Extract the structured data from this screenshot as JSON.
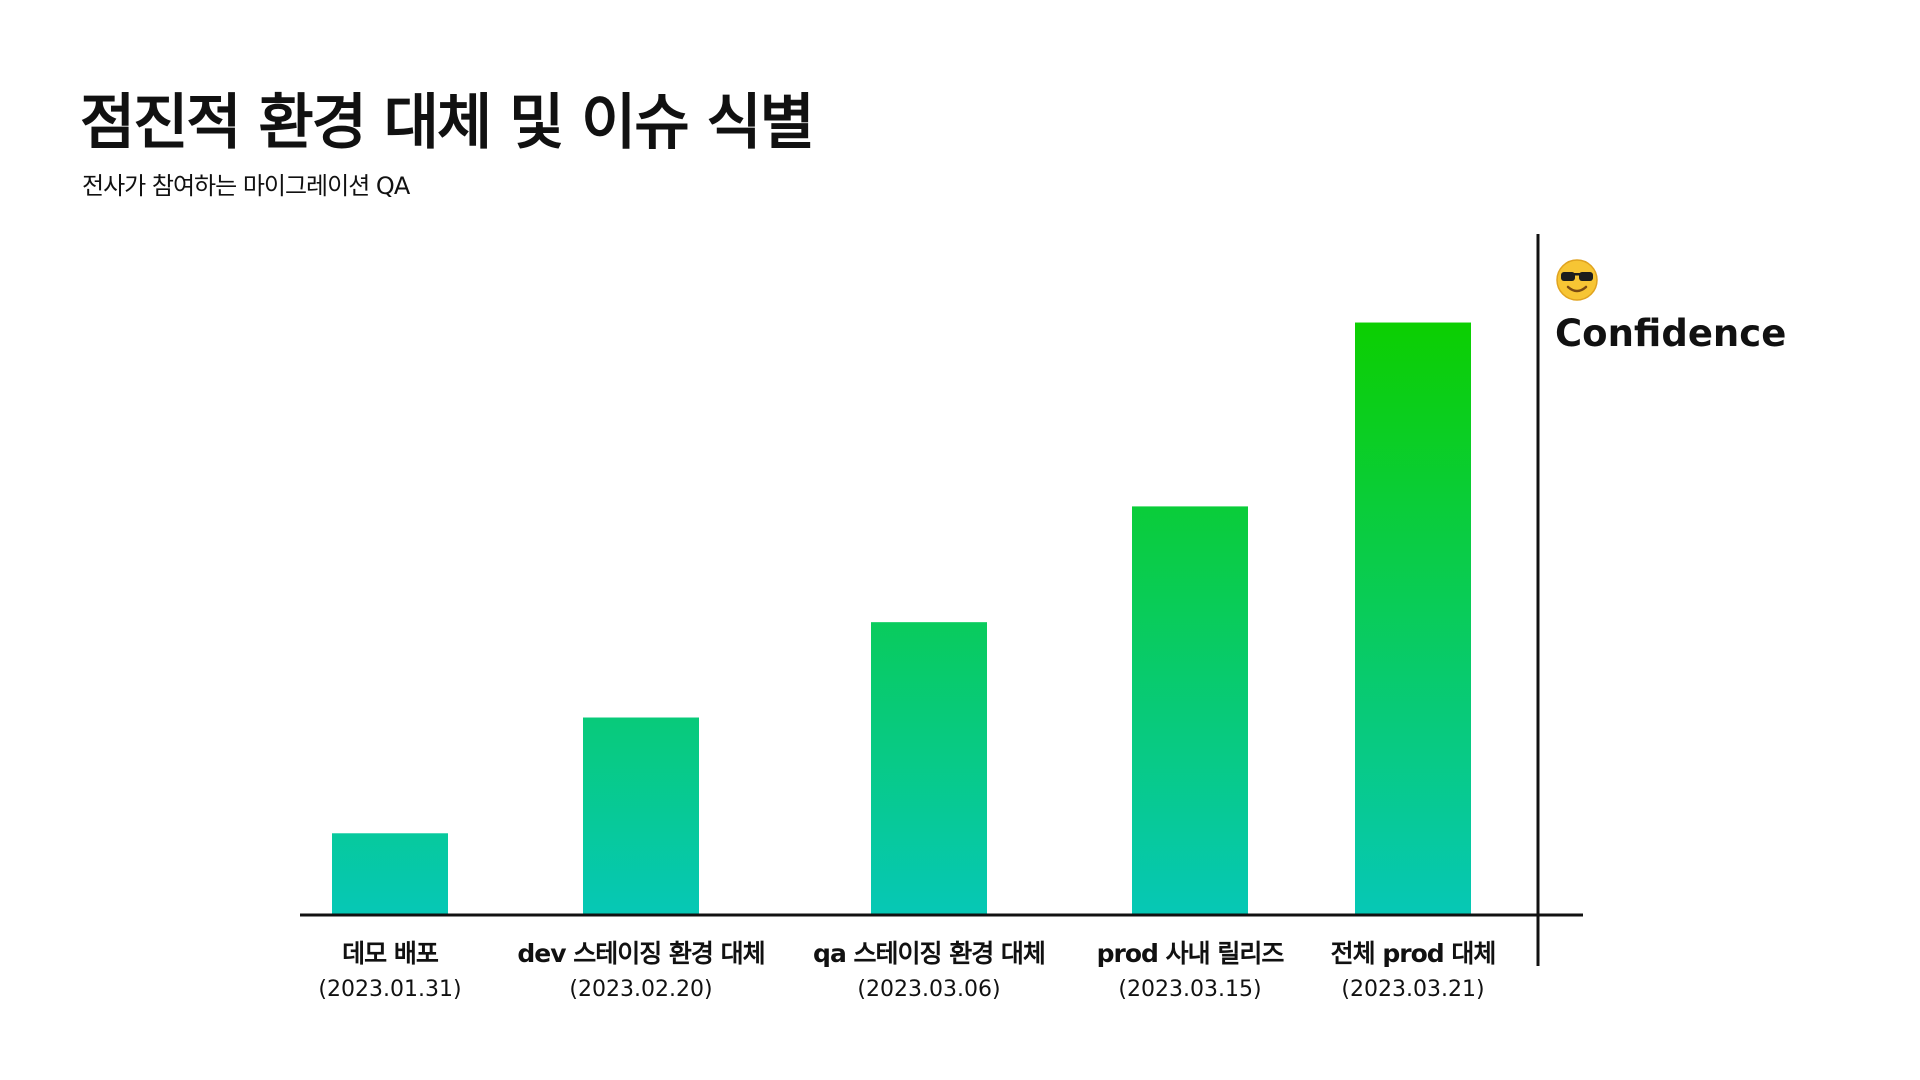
{
  "header": {
    "title": "점진적 환경 대체 및 이슈 식별",
    "subtitle": "전사가 참여하는 마이그레이션 QA"
  },
  "side_label": {
    "icon": "sunglasses-smiley-icon",
    "text": "Confidence"
  },
  "chart_data": {
    "type": "bar",
    "categories": [
      "데모 배포",
      "dev 스테이징 환경 대체",
      "qa 스테이징 환경 대체",
      "prod 사내 릴리즈",
      "전체 prod 대체"
    ],
    "dates": [
      "(2023.01.31)",
      "(2023.02.20)",
      "(2023.03.06)",
      "(2023.03.15)",
      "(2023.03.21)"
    ],
    "values": [
      12,
      29,
      43,
      60,
      87
    ],
    "ylim": [
      0,
      100
    ],
    "ylabel": "Confidence",
    "grid": false,
    "legend": "none",
    "colors": {
      "bar_top": "#0ccf00",
      "bar_bottom": "#06c8b6",
      "axis": "#111111"
    }
  }
}
